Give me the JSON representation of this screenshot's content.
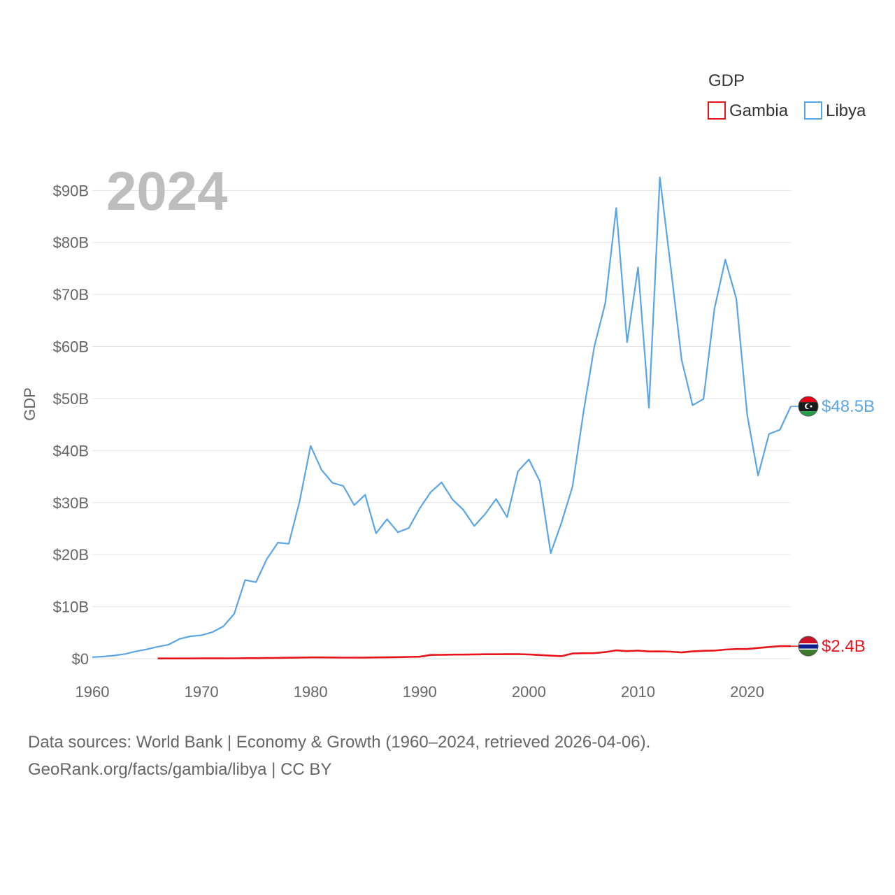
{
  "chart_data": {
    "type": "line",
    "legend_title": "GDP",
    "ylabel": "GDP",
    "xlabel": "",
    "year_label": "2024",
    "xlim": [
      1960,
      2024
    ],
    "ylim": [
      0,
      93000000000
    ],
    "x_ticks": [
      1960,
      1970,
      1980,
      1990,
      2000,
      2010,
      2020
    ],
    "y_ticks": [
      {
        "value": 0,
        "label": "$0"
      },
      {
        "value": 10000000000,
        "label": "$10B"
      },
      {
        "value": 20000000000,
        "label": "$20B"
      },
      {
        "value": 30000000000,
        "label": "$30B"
      },
      {
        "value": 40000000000,
        "label": "$40B"
      },
      {
        "value": 50000000000,
        "label": "$50B"
      },
      {
        "value": 60000000000,
        "label": "$60B"
      },
      {
        "value": 70000000000,
        "label": "$70B"
      },
      {
        "value": 80000000000,
        "label": "$80B"
      },
      {
        "value": 90000000000,
        "label": "$90B"
      }
    ],
    "legend_position": "top-right",
    "series": [
      {
        "name": "Gambia",
        "color": "#e8141c",
        "end_label": "$2.4B",
        "flag_icon": "gambia-flag-icon",
        "x": [
          1966,
          1967,
          1968,
          1969,
          1970,
          1971,
          1972,
          1973,
          1974,
          1975,
          1976,
          1977,
          1978,
          1979,
          1980,
          1981,
          1982,
          1983,
          1984,
          1985,
          1986,
          1987,
          1988,
          1989,
          1990,
          1991,
          1992,
          1993,
          1994,
          1995,
          1996,
          1997,
          1998,
          1999,
          2000,
          2001,
          2002,
          2003,
          2004,
          2005,
          2006,
          2007,
          2008,
          2009,
          2010,
          2011,
          2012,
          2013,
          2014,
          2015,
          2016,
          2017,
          2018,
          2019,
          2020,
          2021,
          2022,
          2023,
          2024
        ],
        "values": [
          0.04,
          0.04,
          0.04,
          0.04,
          0.05,
          0.05,
          0.06,
          0.07,
          0.09,
          0.1,
          0.12,
          0.15,
          0.18,
          0.22,
          0.24,
          0.24,
          0.23,
          0.2,
          0.2,
          0.22,
          0.24,
          0.26,
          0.3,
          0.33,
          0.38,
          0.71,
          0.74,
          0.78,
          0.78,
          0.82,
          0.85,
          0.84,
          0.86,
          0.88,
          0.8,
          0.7,
          0.58,
          0.49,
          0.99,
          1.05,
          1.06,
          1.27,
          1.6,
          1.45,
          1.54,
          1.39,
          1.4,
          1.35,
          1.2,
          1.4,
          1.5,
          1.55,
          1.75,
          1.85,
          1.85,
          2.05,
          2.25,
          2.4,
          2.4
        ]
      },
      {
        "name": "Libya",
        "color": "#5aa5e6",
        "end_label": "$48.5B",
        "flag_icon": "libya-flag-icon",
        "x": [
          1960,
          1961,
          1962,
          1963,
          1964,
          1965,
          1966,
          1967,
          1968,
          1969,
          1970,
          1971,
          1972,
          1973,
          1974,
          1975,
          1976,
          1977,
          1978,
          1979,
          1980,
          1981,
          1982,
          1983,
          1984,
          1985,
          1986,
          1987,
          1988,
          1989,
          1990,
          1991,
          1992,
          1993,
          1994,
          1995,
          1996,
          1997,
          1998,
          1999,
          2000,
          2001,
          2002,
          2003,
          2004,
          2005,
          2006,
          2007,
          2008,
          2009,
          2010,
          2011,
          2012,
          2013,
          2014,
          2015,
          2016,
          2017,
          2018,
          2019,
          2020,
          2021,
          2022,
          2023,
          2024
        ],
        "values": [
          0.3,
          0.4,
          0.6,
          0.9,
          1.4,
          1.8,
          2.3,
          2.7,
          3.8,
          4.3,
          4.5,
          5.1,
          6.2,
          8.6,
          15.1,
          14.7,
          19.2,
          22.3,
          22.1,
          30.3,
          40.9,
          36.3,
          33.8,
          33.2,
          29.5,
          31.5,
          24.1,
          26.8,
          24.3,
          25.1,
          28.9,
          32.0,
          33.9,
          30.6,
          28.6,
          25.5,
          27.8,
          30.7,
          27.2,
          36.0,
          38.3,
          34.1,
          20.3,
          26.2,
          33.1,
          47.3,
          60.0,
          68.3,
          86.6,
          60.8,
          75.2,
          48.2,
          92.5,
          75.2,
          57.4,
          48.7,
          49.9,
          67.2,
          76.7,
          69.2,
          46.9,
          35.2,
          43.2,
          44.0,
          48.5
        ]
      }
    ]
  },
  "footer": {
    "line1": "Data sources: World Bank | Economy & Growth (1960–2024, retrieved 2026-04-06).",
    "line2": "GeoRank.org/facts/gambia/libya | CC BY"
  }
}
